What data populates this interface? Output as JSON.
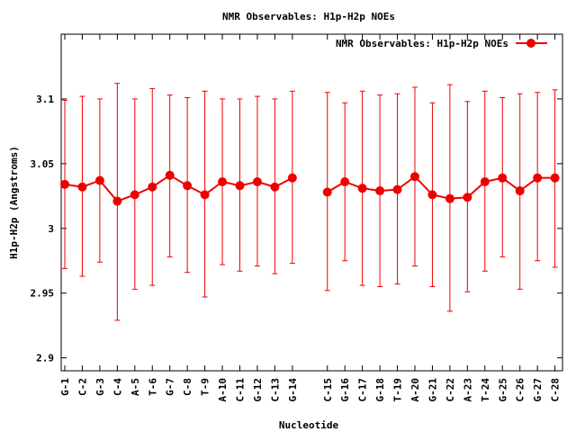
{
  "chart_data": {
    "type": "line",
    "title": "NMR Observables: H1p-H2p NOEs",
    "xlabel": "Nucleotide",
    "ylabel": "H1p-H2p (Angstroms)",
    "ylim": [
      2.89,
      3.15
    ],
    "yticks": [
      2.9,
      2.95,
      3.0,
      3.05,
      3.1
    ],
    "ytick_labels": [
      "2.9",
      "2.95",
      "3",
      "3.05",
      "3.1"
    ],
    "grid": false,
    "legend_position": "top-right",
    "categories": [
      "G-1",
      "C-2",
      "G-3",
      "C-4",
      "A-5",
      "T-6",
      "G-7",
      "C-8",
      "T-9",
      "A-10",
      "C-11",
      "G-12",
      "C-13",
      "G-14",
      "C-15",
      "G-16",
      "C-17",
      "G-18",
      "T-19",
      "A-20",
      "G-21",
      "C-22",
      "A-23",
      "T-24",
      "G-25",
      "C-26",
      "G-27",
      "C-28"
    ],
    "series": [
      {
        "name": "NMR Observables: H1p-H2p NOEs",
        "color": "#ee0000",
        "marker": "circle",
        "segments": [
          [
            0,
            13
          ],
          [
            14,
            27
          ]
        ],
        "values": [
          3.034,
          3.032,
          3.037,
          3.021,
          3.026,
          3.032,
          3.041,
          3.033,
          3.026,
          3.036,
          3.033,
          3.036,
          3.032,
          3.039,
          3.028,
          3.036,
          3.031,
          3.029,
          3.03,
          3.04,
          3.026,
          3.023,
          3.024,
          3.036,
          3.039,
          3.029,
          3.039,
          3.039
        ],
        "err_low": [
          2.969,
          2.963,
          2.974,
          2.929,
          2.953,
          2.956,
          2.978,
          2.966,
          2.947,
          2.972,
          2.967,
          2.971,
          2.965,
          2.973,
          2.952,
          2.975,
          2.956,
          2.955,
          2.957,
          2.971,
          2.955,
          2.936,
          2.951,
          2.967,
          2.978,
          2.953,
          2.975,
          2.97
        ],
        "err_high": [
          3.099,
          3.102,
          3.1,
          3.112,
          3.1,
          3.108,
          3.103,
          3.101,
          3.106,
          3.1,
          3.1,
          3.102,
          3.1,
          3.106,
          3.105,
          3.097,
          3.106,
          3.103,
          3.104,
          3.109,
          3.097,
          3.111,
          3.098,
          3.106,
          3.101,
          3.104,
          3.105,
          3.107
        ]
      }
    ]
  }
}
